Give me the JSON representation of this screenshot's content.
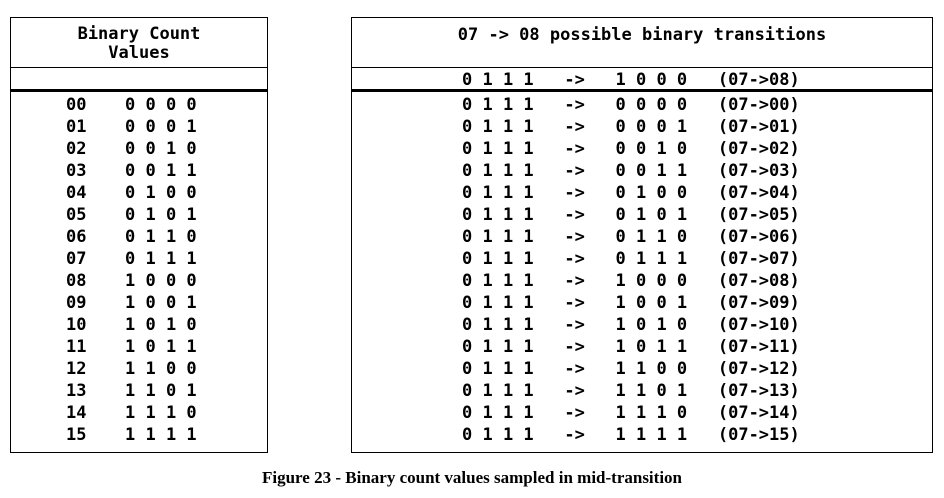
{
  "left_table": {
    "header": "Binary Count\nValues",
    "rows": [
      {
        "dec": "00",
        "bin": "0 0 0 0"
      },
      {
        "dec": "01",
        "bin": "0 0 0 1"
      },
      {
        "dec": "02",
        "bin": "0 0 1 0"
      },
      {
        "dec": "03",
        "bin": "0 0 1 1"
      },
      {
        "dec": "04",
        "bin": "0 1 0 0"
      },
      {
        "dec": "05",
        "bin": "0 1 0 1"
      },
      {
        "dec": "06",
        "bin": "0 1 1 0"
      },
      {
        "dec": "07",
        "bin": "0 1 1 1"
      },
      {
        "dec": "08",
        "bin": "1 0 0 0"
      },
      {
        "dec": "09",
        "bin": "1 0 0 1"
      },
      {
        "dec": "10",
        "bin": "1 0 1 0"
      },
      {
        "dec": "11",
        "bin": "1 0 1 1"
      },
      {
        "dec": "12",
        "bin": "1 1 0 0"
      },
      {
        "dec": "13",
        "bin": "1 1 0 1"
      },
      {
        "dec": "14",
        "bin": "1 1 1 0"
      },
      {
        "dec": "15",
        "bin": "1 1 1 1"
      }
    ]
  },
  "right_table": {
    "header": "07 -> 08 possible binary transitions",
    "highlight": "0 1 1 1   ->   1 0 0 0   (07->08)",
    "rows": [
      "0 1 1 1   ->   0 0 0 0   (07->00)",
      "0 1 1 1   ->   0 0 0 1   (07->01)",
      "0 1 1 1   ->   0 0 1 0   (07->02)",
      "0 1 1 1   ->   0 0 1 1   (07->03)",
      "0 1 1 1   ->   0 1 0 0   (07->04)",
      "0 1 1 1   ->   0 1 0 1   (07->05)",
      "0 1 1 1   ->   0 1 1 0   (07->06)",
      "0 1 1 1   ->   0 1 1 1   (07->07)",
      "0 1 1 1   ->   1 0 0 0   (07->08)",
      "0 1 1 1   ->   1 0 0 1   (07->09)",
      "0 1 1 1   ->   1 0 1 0   (07->10)",
      "0 1 1 1   ->   1 0 1 1   (07->11)",
      "0 1 1 1   ->   1 1 0 0   (07->12)",
      "0 1 1 1   ->   1 1 0 1   (07->13)",
      "0 1 1 1   ->   1 1 1 0   (07->14)",
      "0 1 1 1   ->   1 1 1 1   (07->15)"
    ]
  },
  "caption": "Figure 23 - Binary count values sampled in mid-transition"
}
